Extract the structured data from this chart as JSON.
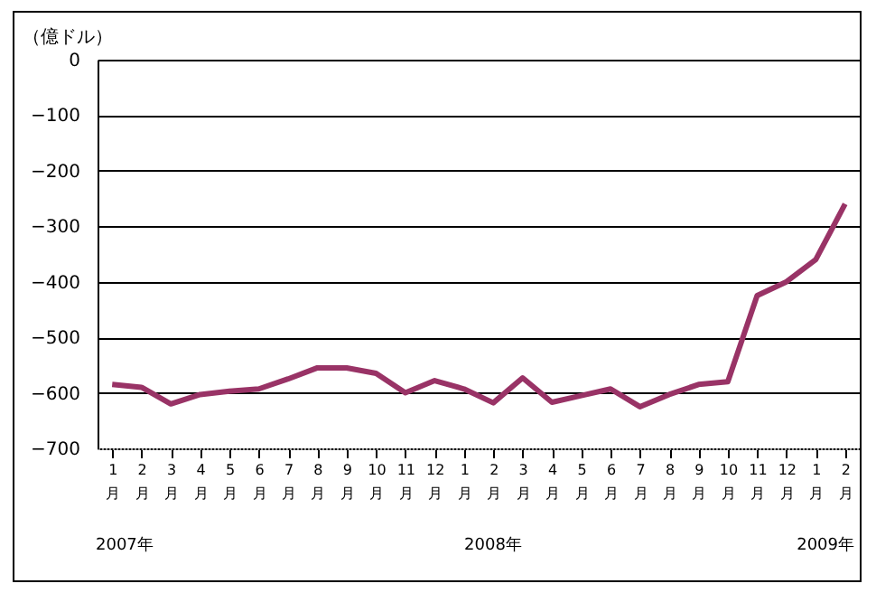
{
  "chart_data": {
    "type": "line",
    "ylabel": "（億ドル）",
    "categories": [
      "1月",
      "2月",
      "3月",
      "4月",
      "5月",
      "6月",
      "7月",
      "8月",
      "9月",
      "10月",
      "11月",
      "12月",
      "1月",
      "2月",
      "3月",
      "4月",
      "5月",
      "6月",
      "7月",
      "8月",
      "9月",
      "10月",
      "11月",
      "12月",
      "1月",
      "2月"
    ],
    "series": [
      {
        "color": "#993366",
        "values": [
          -585,
          -590,
          -620,
          -603,
          -597,
          -593,
          -575,
          -555,
          -555,
          -565,
          -600,
          -578,
          -593,
          -618,
          -573,
          -617,
          -605,
          -593,
          -625,
          -603,
          -585,
          -580,
          -425,
          -400,
          -360,
          -260
        ]
      }
    ],
    "ylim": [
      -700,
      0
    ],
    "yticks": [
      -700,
      -600,
      -500,
      -400,
      -300,
      -200,
      -100,
      0
    ],
    "grid": "y",
    "marker": "none",
    "line_style": "solid",
    "annotations": [
      "2007年",
      "2008年",
      "2009年"
    ]
  }
}
